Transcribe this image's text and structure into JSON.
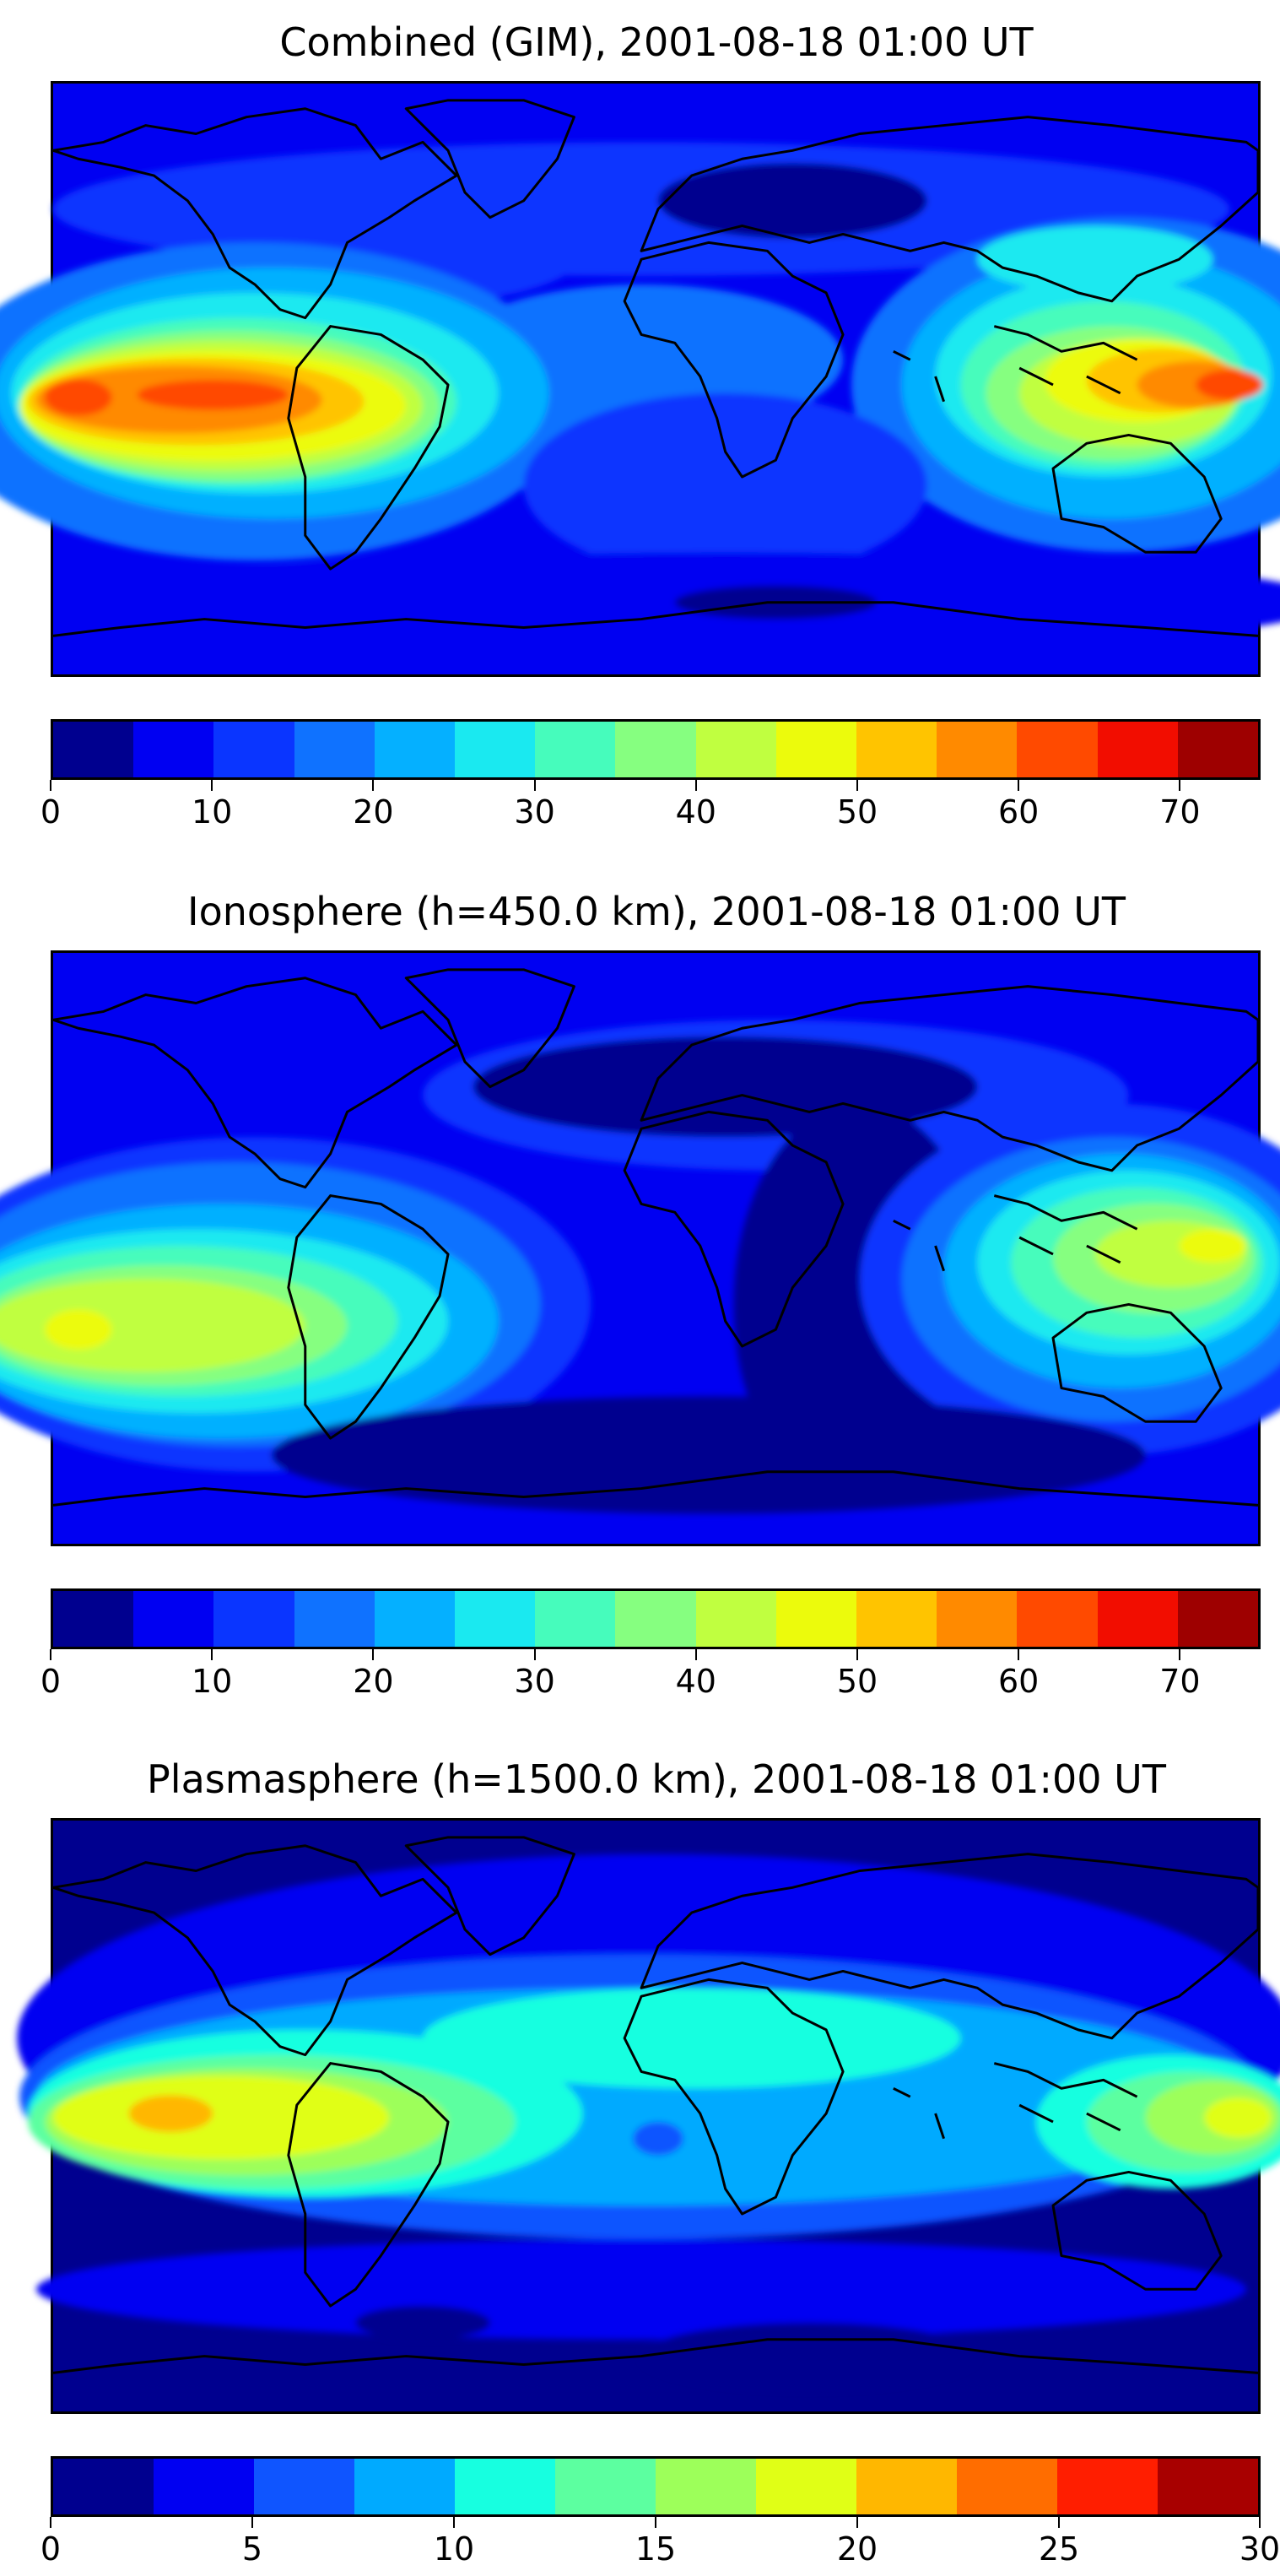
{
  "panels": [
    {
      "title": "Combined (GIM), 2001-08-18 01:00 UT",
      "vmax": 75,
      "colorbar": {
        "colors": [
          "#00008f",
          "#0000f2",
          "#0a35ff",
          "#0f72ff",
          "#05b0ff",
          "#1ae9f0",
          "#46fcbc",
          "#86ff80",
          "#c0ff40",
          "#ecfb0c",
          "#ffc400",
          "#ff8a00",
          "#ff4a00",
          "#f20d00",
          "#9e0000"
        ],
        "ticks": [
          0,
          10,
          20,
          30,
          40,
          50,
          60,
          70
        ]
      }
    },
    {
      "title": "Ionosphere  (h=450.0 km), 2001-08-18 01:00 UT",
      "vmax": 75,
      "colorbar": {
        "colors": [
          "#00008f",
          "#0000f2",
          "#0a35ff",
          "#0f72ff",
          "#05b0ff",
          "#1ae9f0",
          "#46fcbc",
          "#86ff80",
          "#c0ff40",
          "#ecfb0c",
          "#ffc400",
          "#ff8a00",
          "#ff4a00",
          "#f20d00",
          "#9e0000"
        ],
        "ticks": [
          0,
          10,
          20,
          30,
          40,
          50,
          60,
          70
        ]
      }
    },
    {
      "title": "Plasmasphere (h=1500.0 km), 2001-08-18 01:00 UT",
      "vmax": 30,
      "colorbar": {
        "colors": [
          "#00008f",
          "#0000f2",
          "#0f55ff",
          "#00aaff",
          "#17ffe0",
          "#5cffa0",
          "#9dff5a",
          "#e0ff16",
          "#ffb700",
          "#ff6d00",
          "#ff1e00",
          "#a80000"
        ],
        "ticks": [
          0,
          5,
          10,
          15,
          20,
          25,
          30
        ]
      }
    }
  ]
}
